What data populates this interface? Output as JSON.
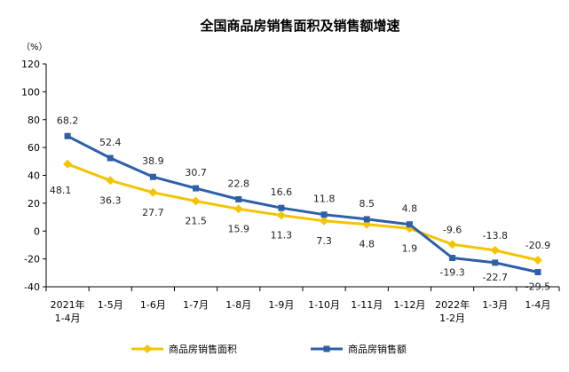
{
  "chart_data": {
    "type": "line",
    "title": "全国商品房销售面积及销售额增速",
    "ylabel": "（%）",
    "ylim": [
      -40,
      120
    ],
    "yticks": [
      "120",
      "100",
      "80",
      "60",
      "40",
      "20",
      "0",
      "-20",
      "-40"
    ],
    "categories": [
      {
        "line1": "2021年",
        "line2": "1-4月"
      },
      {
        "line1": "1-5月",
        "line2": ""
      },
      {
        "line1": "1-6月",
        "line2": ""
      },
      {
        "line1": "1-7月",
        "line2": ""
      },
      {
        "line1": "1-8月",
        "line2": ""
      },
      {
        "line1": "1-9月",
        "line2": ""
      },
      {
        "line1": "1-10月",
        "line2": ""
      },
      {
        "line1": "1-11月",
        "line2": ""
      },
      {
        "line1": "1-12月",
        "line2": ""
      },
      {
        "line1": "2022年",
        "line2": "1-2月"
      },
      {
        "line1": "1-3月",
        "line2": ""
      },
      {
        "line1": "1-4月",
        "line2": ""
      }
    ],
    "series": [
      {
        "name": "商品房销售面积",
        "color": "#F5C400",
        "marker": "diamond",
        "values": [
          48.1,
          36.3,
          27.7,
          21.5,
          15.9,
          11.3,
          7.3,
          4.8,
          1.9,
          -9.6,
          -13.8,
          -20.9
        ],
        "labels": [
          "48.1",
          "36.3",
          "27.7",
          "21.5",
          "15.9",
          "11.3",
          "7.3",
          "4.8",
          "1.9",
          "-9.6",
          "-13.8",
          "-20.9"
        ]
      },
      {
        "name": "商品房销售额",
        "color": "#2E5FA8",
        "marker": "square",
        "values": [
          68.2,
          52.4,
          38.9,
          30.7,
          22.8,
          16.6,
          11.8,
          8.5,
          4.8,
          -19.3,
          -22.7,
          -29.5
        ],
        "labels": [
          "68.2",
          "52.4",
          "38.9",
          "30.7",
          "22.8",
          "16.6",
          "11.8",
          "8.5",
          "4.8",
          "-19.3",
          "-22.7",
          "-29.5"
        ]
      }
    ],
    "grid": false,
    "legend_position": "bottom"
  }
}
